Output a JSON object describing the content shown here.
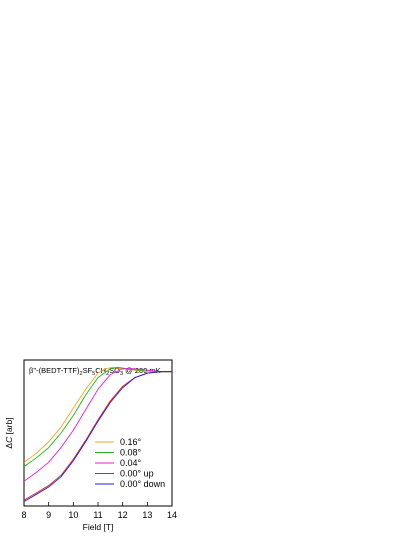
{
  "chart_data": {
    "type": "line",
    "title_parts": {
      "prefix": "β''-(BEDT-TTF)",
      "sub1": "2",
      "mid1": "SF",
      "sub2": "5",
      "mid2": "CH",
      "sub3": "2",
      "mid3": "SO",
      "sub4": "3",
      "suffix": " @ 200 mK"
    },
    "xlabel": "Field [T]",
    "ylabel_parts": {
      "delta": "Δ",
      "italic": "C",
      "rest": " [arb]"
    },
    "xlim": [
      8,
      14
    ],
    "ylim": [
      0,
      1
    ],
    "xticks": [
      8,
      9,
      10,
      11,
      12,
      13,
      14
    ],
    "grid": false,
    "legend_position": "bottom-right",
    "series": [
      {
        "name": "0.16°",
        "color": "#f5a623",
        "x": [
          8.0,
          8.5,
          9.0,
          9.5,
          10.0,
          10.5,
          11.0,
          11.3,
          11.6,
          12.0,
          12.5,
          13.0,
          13.5,
          14.0
        ],
        "y": [
          0.3,
          0.36,
          0.44,
          0.54,
          0.67,
          0.8,
          0.91,
          0.94,
          0.95,
          0.94,
          0.93,
          0.92,
          0.92,
          0.92
        ]
      },
      {
        "name": "0.08°",
        "color": "#22b422",
        "x": [
          8.0,
          8.5,
          9.0,
          9.5,
          10.0,
          10.5,
          11.0,
          11.5,
          11.8,
          12.2,
          12.6,
          13.0,
          13.5,
          14.0
        ],
        "y": [
          0.27,
          0.33,
          0.4,
          0.5,
          0.62,
          0.76,
          0.88,
          0.94,
          0.95,
          0.94,
          0.93,
          0.93,
          0.92,
          0.92
        ]
      },
      {
        "name": "0.04°",
        "color": "#e020d0",
        "x": [
          8.0,
          8.5,
          9.0,
          9.5,
          10.0,
          10.5,
          11.0,
          11.5,
          12.0,
          12.5,
          13.0,
          13.5,
          14.0
        ],
        "y": [
          0.17,
          0.23,
          0.3,
          0.4,
          0.52,
          0.66,
          0.8,
          0.9,
          0.94,
          0.94,
          0.93,
          0.92,
          0.92
        ]
      },
      {
        "name": "0.00° up",
        "color": "#e02020",
        "x": [
          8.0,
          8.5,
          9.0,
          9.5,
          10.0,
          10.5,
          11.0,
          11.5,
          12.0,
          12.5,
          13.0,
          13.5,
          14.0
        ],
        "y": [
          0.04,
          0.09,
          0.14,
          0.21,
          0.32,
          0.45,
          0.59,
          0.72,
          0.82,
          0.88,
          0.91,
          0.92,
          0.92
        ]
      },
      {
        "name": "0.00° down",
        "color": "#2020e0",
        "x": [
          8.0,
          8.5,
          9.0,
          9.5,
          10.0,
          10.5,
          11.0,
          11.5,
          12.0,
          12.5,
          13.0,
          13.5,
          14.0
        ],
        "y": [
          0.03,
          0.08,
          0.13,
          0.2,
          0.31,
          0.44,
          0.58,
          0.71,
          0.81,
          0.88,
          0.91,
          0.92,
          0.92
        ]
      }
    ]
  }
}
